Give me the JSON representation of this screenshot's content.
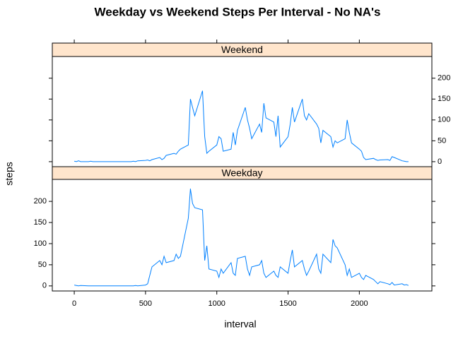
{
  "chart_data": {
    "type": "line",
    "title": "Weekday vs Weekend Steps Per Interval - No NA's",
    "xlabel": "interval",
    "ylabel": "steps",
    "xlim": [
      -154,
      2509
    ],
    "ylim": [
      -12,
      252
    ],
    "xticks": [
      0,
      500,
      1000,
      1500,
      2000
    ],
    "yticks": [
      0,
      50,
      100,
      150,
      200
    ],
    "x": [
      0,
      15,
      30,
      45,
      100,
      115,
      130,
      145,
      200,
      215,
      230,
      245,
      300,
      315,
      330,
      345,
      400,
      415,
      430,
      445,
      500,
      515,
      530,
      545,
      600,
      615,
      630,
      645,
      700,
      715,
      730,
      745,
      800,
      815,
      830,
      845,
      900,
      915,
      930,
      945,
      1000,
      1015,
      1030,
      1045,
      1100,
      1115,
      1130,
      1145,
      1200,
      1215,
      1230,
      1245,
      1300,
      1315,
      1330,
      1345,
      1400,
      1415,
      1430,
      1445,
      1500,
      1515,
      1530,
      1545,
      1600,
      1615,
      1630,
      1645,
      1700,
      1715,
      1730,
      1745,
      1800,
      1815,
      1830,
      1845,
      1900,
      1915,
      1930,
      1945,
      2000,
      2015,
      2030,
      2045,
      2100,
      2115,
      2130,
      2145,
      2200,
      2215,
      2230,
      2245,
      2300,
      2315,
      2330,
      2345
    ],
    "series": [
      {
        "name": "Weekend",
        "color": "#0080ff",
        "values": [
          1,
          0,
          2,
          0,
          0,
          1,
          0,
          0,
          0,
          0,
          0,
          0,
          0,
          0,
          0,
          0,
          0,
          1,
          0,
          2,
          3,
          4,
          2,
          5,
          10,
          5,
          8,
          15,
          20,
          18,
          25,
          30,
          40,
          150,
          130,
          110,
          170,
          60,
          20,
          25,
          40,
          60,
          55,
          25,
          30,
          70,
          40,
          75,
          130,
          100,
          80,
          55,
          90,
          70,
          140,
          105,
          95,
          60,
          110,
          35,
          60,
          90,
          130,
          95,
          150,
          110,
          100,
          115,
          90,
          80,
          45,
          75,
          60,
          35,
          50,
          45,
          55,
          100,
          70,
          45,
          30,
          25,
          10,
          5,
          8,
          5,
          3,
          4,
          5,
          3,
          12,
          10,
          2,
          1,
          0,
          0
        ]
      },
      {
        "name": "Weekday",
        "color": "#0080ff",
        "values": [
          2,
          1,
          0,
          1,
          0,
          0,
          0,
          0,
          0,
          0,
          0,
          0,
          0,
          0,
          0,
          0,
          0,
          0,
          1,
          0,
          2,
          5,
          25,
          45,
          60,
          50,
          70,
          55,
          60,
          75,
          65,
          70,
          160,
          230,
          195,
          185,
          180,
          60,
          95,
          40,
          35,
          20,
          40,
          30,
          55,
          30,
          25,
          65,
          70,
          40,
          25,
          45,
          50,
          60,
          30,
          20,
          35,
          25,
          20,
          45,
          30,
          60,
          85,
          45,
          60,
          40,
          25,
          35,
          75,
          40,
          30,
          75,
          55,
          110,
          95,
          90,
          50,
          25,
          40,
          20,
          30,
          20,
          15,
          25,
          15,
          10,
          5,
          10,
          5,
          3,
          8,
          2,
          5,
          2,
          3,
          1
        ]
      }
    ],
    "strip_color": "#ffe5cc"
  }
}
